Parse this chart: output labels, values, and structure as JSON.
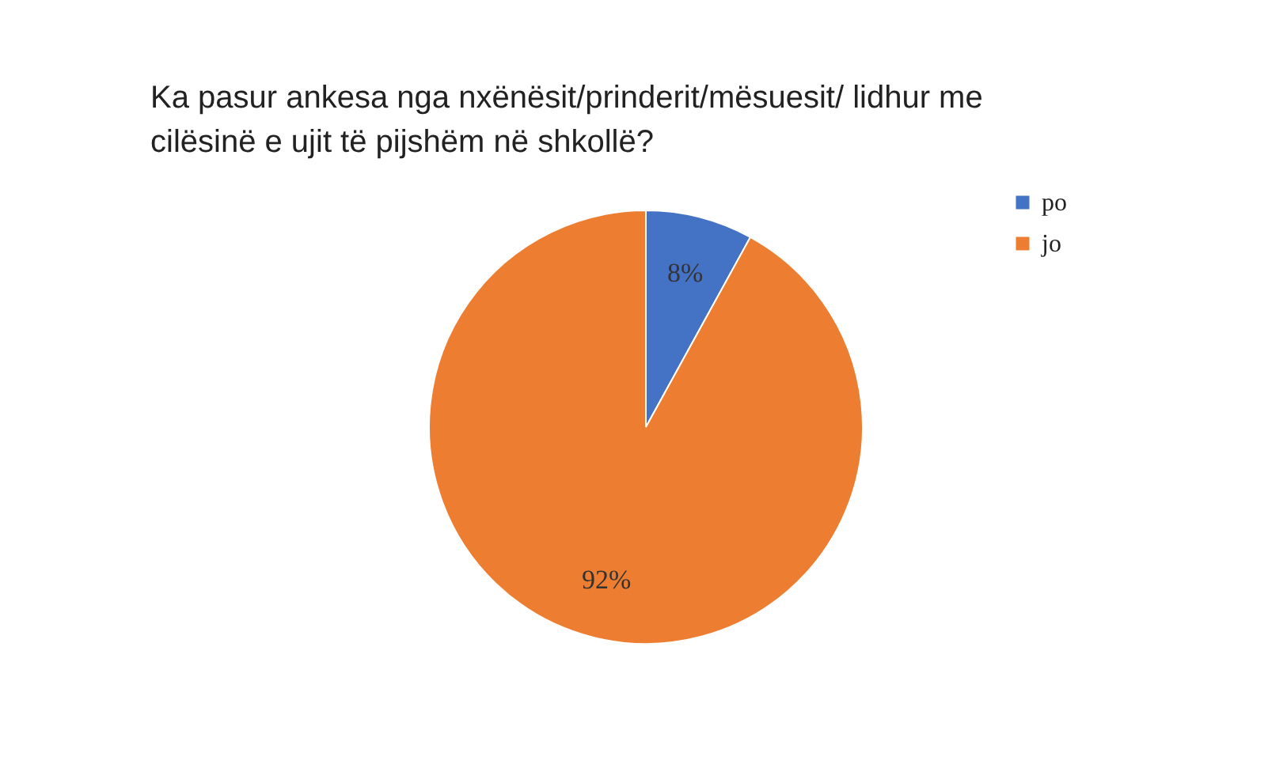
{
  "chart_data": {
    "type": "pie",
    "title": "Ka pasur ankesa nga nxënësit/prinderit/mësuesit/ lidhur me cilësinë e ujit të pijshëm në shkollë?",
    "categories": [
      "po",
      "jo"
    ],
    "values": [
      8,
      92
    ],
    "colors": [
      "#4472c4",
      "#ed7d31"
    ],
    "value_labels": [
      "8%",
      "92%"
    ],
    "legend": "right"
  }
}
